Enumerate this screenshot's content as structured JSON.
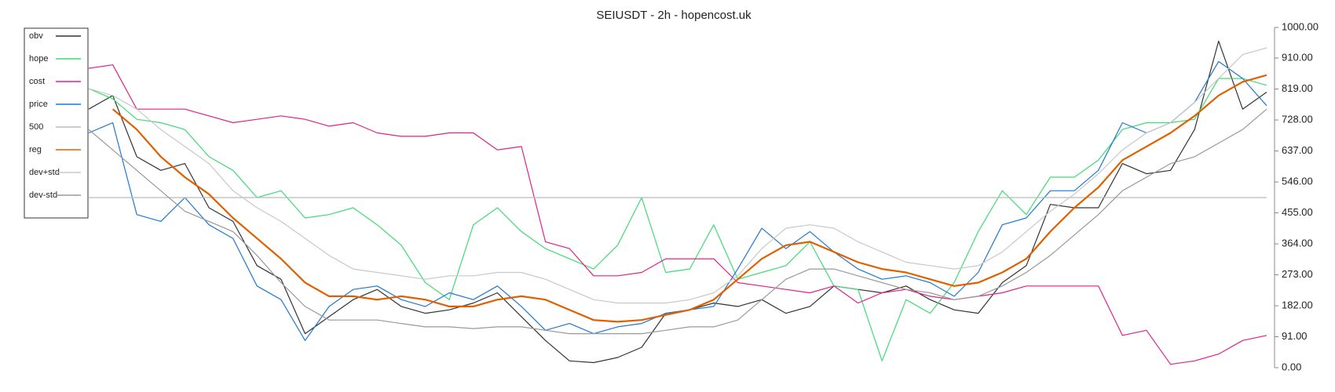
{
  "chart_data": {
    "type": "line",
    "title": "SEIUSDT - 2h - hopencost.uk",
    "ylim": [
      0,
      1000
    ],
    "yticks": [
      {
        "value": 0,
        "label": "0.00"
      },
      {
        "value": 91,
        "label": "91.00"
      },
      {
        "value": 182,
        "label": "182.00"
      },
      {
        "value": 273,
        "label": "273.00"
      },
      {
        "value": 364,
        "label": "364.00"
      },
      {
        "value": 455,
        "label": "455.00"
      },
      {
        "value": 546,
        "label": "546.00"
      },
      {
        "value": 637,
        "label": "637.00"
      },
      {
        "value": 728,
        "label": "728.00"
      },
      {
        "value": 819,
        "label": "819.00"
      },
      {
        "value": 910,
        "label": "910.00"
      },
      {
        "value": 1000,
        "label": "1000.00"
      }
    ],
    "legend": "upper left",
    "series": [
      {
        "name": "obv",
        "color": "#333333",
        "values": [
          760,
          800,
          620,
          580,
          600,
          470,
          430,
          300,
          260,
          100,
          150,
          200,
          230,
          180,
          160,
          170,
          190,
          220,
          150,
          80,
          20,
          15,
          30,
          60,
          160,
          170,
          190,
          180,
          200,
          160,
          180,
          240,
          230,
          220,
          240,
          200,
          170,
          160,
          250,
          300,
          480,
          470,
          470,
          600,
          570,
          580,
          700,
          960,
          760,
          810
        ]
      },
      {
        "name": "hope",
        "color": "#3ddc74",
        "values": [
          820,
          790,
          730,
          720,
          700,
          620,
          580,
          500,
          520,
          440,
          450,
          470,
          420,
          360,
          250,
          200,
          420,
          470,
          400,
          350,
          320,
          290,
          360,
          500,
          280,
          290,
          420,
          260,
          280,
          300,
          370,
          240,
          230,
          20,
          200,
          160,
          250,
          400,
          520,
          450,
          560,
          560,
          610,
          700,
          720,
          720,
          730,
          850,
          850,
          830
        ]
      },
      {
        "name": "cost",
        "color": "#e0218a",
        "values": [
          880,
          890,
          760,
          760,
          760,
          740,
          720,
          730,
          740,
          730,
          710,
          720,
          690,
          680,
          680,
          690,
          690,
          640,
          650,
          370,
          350,
          270,
          270,
          280,
          320,
          320,
          320,
          250,
          240,
          230,
          220,
          240,
          190,
          220,
          230,
          210,
          200,
          210,
          220,
          240,
          240,
          240,
          240,
          95,
          110,
          10,
          20,
          40,
          80,
          95
        ]
      },
      {
        "name": "price",
        "color": "#1f78d1",
        "values": [
          690,
          720,
          450,
          430,
          500,
          420,
          380,
          240,
          200,
          80,
          180,
          230,
          240,
          200,
          180,
          220,
          200,
          240,
          180,
          110,
          130,
          100,
          120,
          130,
          160,
          170,
          180,
          290,
          410,
          350,
          400,
          340,
          290,
          260,
          270,
          250,
          210,
          280,
          420,
          440,
          520,
          520,
          580,
          720,
          690,
          720,
          780,
          900,
          850,
          770
        ]
      },
      {
        "name": "500",
        "color": "#bbbbbb",
        "values": [
          500,
          500,
          500,
          500,
          500,
          500,
          500,
          500,
          500,
          500,
          500,
          500,
          500,
          500,
          500,
          500,
          500,
          500,
          500,
          500,
          500,
          500,
          500,
          500,
          500,
          500,
          500,
          500,
          500,
          500,
          500,
          500,
          500,
          500,
          500,
          500,
          500,
          500,
          500,
          500,
          500,
          500,
          500,
          500,
          500,
          500,
          500,
          500,
          500,
          500
        ]
      },
      {
        "name": "reg",
        "color": "#e06000",
        "values": [
          null,
          760,
          700,
          620,
          560,
          510,
          440,
          380,
          320,
          250,
          210,
          210,
          200,
          210,
          200,
          180,
          180,
          200,
          210,
          200,
          170,
          140,
          135,
          140,
          155,
          170,
          200,
          260,
          320,
          360,
          370,
          340,
          310,
          290,
          280,
          260,
          240,
          250,
          280,
          320,
          400,
          470,
          530,
          610,
          650,
          690,
          740,
          800,
          840,
          860
        ]
      },
      {
        "name": "dev+std",
        "color": "#c8c8c8",
        "values": [
          820,
          800,
          760,
          700,
          650,
          600,
          520,
          470,
          430,
          380,
          330,
          290,
          280,
          270,
          260,
          270,
          270,
          280,
          280,
          260,
          230,
          200,
          190,
          190,
          190,
          200,
          220,
          270,
          350,
          410,
          420,
          410,
          370,
          340,
          310,
          300,
          290,
          300,
          340,
          400,
          460,
          510,
          570,
          640,
          690,
          720,
          780,
          850,
          920,
          940
        ]
      },
      {
        "name": "dev-std",
        "color": "#999999",
        "values": [
          700,
          640,
          580,
          520,
          460,
          430,
          400,
          330,
          250,
          180,
          140,
          140,
          140,
          130,
          120,
          120,
          115,
          120,
          120,
          110,
          100,
          100,
          100,
          100,
          110,
          120,
          120,
          140,
          200,
          260,
          290,
          290,
          270,
          250,
          230,
          220,
          200,
          210,
          240,
          280,
          330,
          390,
          450,
          520,
          560,
          600,
          620,
          660,
          700,
          760
        ]
      }
    ]
  }
}
